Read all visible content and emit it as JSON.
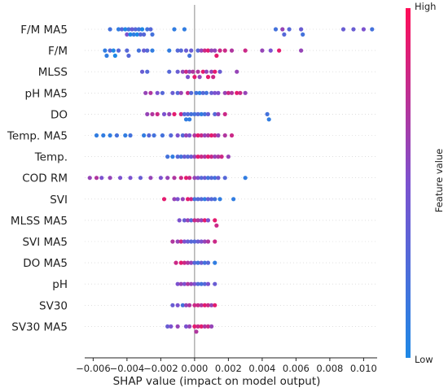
{
  "chart_data": {
    "type": "scatter",
    "subtype": "shap-beeswarm",
    "title": "",
    "xlabel": "SHAP value (impact on model output)",
    "ylabel": "",
    "xlim": [
      -0.0065,
      0.0108
    ],
    "xticks": [
      "−0.006",
      "−0.004",
      "−0.002",
      "0.000",
      "0.002",
      "0.004",
      "0.006",
      "0.008",
      "0.010"
    ],
    "xtick_values": [
      -0.006,
      -0.004,
      -0.002,
      0.0,
      0.002,
      0.004,
      0.006,
      0.008,
      0.01
    ],
    "grid": false,
    "colorbar": {
      "label": "Feature value",
      "high_label": "High",
      "low_label": "Low",
      "low_color": "#1e88e5",
      "high_color": "#ff0d57"
    },
    "features": [
      {
        "name": "F/M MA5",
        "points": [
          [
            -0.005,
            0.2
          ],
          [
            -0.0045,
            0.1
          ],
          [
            -0.0043,
            0.3
          ],
          [
            -0.0041,
            0.0
          ],
          [
            -0.004,
            0.5
          ],
          [
            -0.0039,
            0.2
          ],
          [
            -0.0038,
            0.0
          ],
          [
            -0.0037,
            0.4
          ],
          [
            -0.0036,
            0.1
          ],
          [
            -0.0035,
            0.3
          ],
          [
            -0.0034,
            0.0
          ],
          [
            -0.0033,
            0.2
          ],
          [
            -0.0032,
            0.3
          ],
          [
            -0.0031,
            0.0
          ],
          [
            -0.003,
            0.3
          ],
          [
            -0.0028,
            0.2
          ],
          [
            -0.0026,
            0.3
          ],
          [
            -0.0025,
            0.2
          ],
          [
            -0.0012,
            0.1
          ],
          [
            -0.0006,
            0.1
          ],
          [
            0.0048,
            0.2
          ],
          [
            0.0052,
            0.6
          ],
          [
            0.0053,
            0.3
          ],
          [
            0.0056,
            0.3
          ],
          [
            0.0063,
            0.4
          ],
          [
            0.0064,
            0.2
          ],
          [
            0.0088,
            0.4
          ],
          [
            0.0094,
            0.4
          ],
          [
            0.01,
            0.5
          ],
          [
            0.0105,
            0.2
          ]
        ]
      },
      {
        "name": "F/M",
        "points": [
          [
            -0.0053,
            0.1
          ],
          [
            -0.0052,
            0.1
          ],
          [
            -0.005,
            0.3
          ],
          [
            -0.0048,
            0.0
          ],
          [
            -0.0047,
            0.0
          ],
          [
            -0.0045,
            0.3
          ],
          [
            -0.004,
            0.3
          ],
          [
            -0.0039,
            0.3
          ],
          [
            -0.0033,
            0.2
          ],
          [
            -0.003,
            0.4
          ],
          [
            -0.0028,
            0.3
          ],
          [
            -0.0025,
            0.1
          ],
          [
            -0.0015,
            0.1
          ],
          [
            -0.001,
            0.3
          ],
          [
            -0.0008,
            0.3
          ],
          [
            -0.0005,
            0.4
          ],
          [
            -0.0002,
            0.4
          ],
          [
            -0.0003,
            0.2
          ],
          [
            0.0002,
            0.3
          ],
          [
            0.0004,
            0.6
          ],
          [
            0.0006,
            0.8
          ],
          [
            0.0008,
            0.9
          ],
          [
            0.001,
            0.6
          ],
          [
            0.0012,
            0.6
          ],
          [
            0.0013,
            0.9
          ],
          [
            0.0015,
            0.8
          ],
          [
            0.0018,
            0.8
          ],
          [
            0.0022,
            0.7
          ],
          [
            0.003,
            0.8
          ],
          [
            0.004,
            0.6
          ],
          [
            0.0045,
            0.5
          ],
          [
            0.005,
            0.9
          ],
          [
            0.0063,
            0.6
          ]
        ]
      },
      {
        "name": "MLSS",
        "points": [
          [
            -0.0031,
            0.4
          ],
          [
            -0.0028,
            0.3
          ],
          [
            -0.0015,
            0.3
          ],
          [
            -0.001,
            0.4
          ],
          [
            -0.0007,
            0.6
          ],
          [
            -0.0005,
            0.8
          ],
          [
            -0.0004,
            0.5
          ],
          [
            -0.0003,
            0.6
          ],
          [
            -0.0001,
            0.7
          ],
          [
            0.0,
            0.9
          ],
          [
            0.0002,
            0.7
          ],
          [
            0.0003,
            0.6
          ],
          [
            0.0005,
            0.9
          ],
          [
            0.0007,
            0.6
          ],
          [
            0.0008,
            0.9
          ],
          [
            0.001,
            0.6
          ],
          [
            0.0011,
            0.8
          ],
          [
            0.0012,
            0.9
          ],
          [
            0.0015,
            0.4
          ],
          [
            0.0025,
            0.6
          ]
        ]
      },
      {
        "name": "pH MA5",
        "points": [
          [
            -0.0029,
            0.6
          ],
          [
            -0.0026,
            0.7
          ],
          [
            -0.0022,
            0.5
          ],
          [
            -0.0019,
            0.3
          ],
          [
            -0.0013,
            0.4
          ],
          [
            -0.001,
            0.3
          ],
          [
            -0.0008,
            0.6
          ],
          [
            -0.0004,
            0.8
          ],
          [
            -0.0002,
            0.3
          ],
          [
            0.0001,
            0.2
          ],
          [
            0.0003,
            0.1
          ],
          [
            0.0005,
            0.3
          ],
          [
            0.0007,
            0.2
          ],
          [
            0.001,
            0.4
          ],
          [
            0.0012,
            0.5
          ],
          [
            0.0014,
            0.5
          ],
          [
            0.0018,
            0.6
          ],
          [
            0.002,
            0.8
          ],
          [
            0.0022,
            0.7
          ],
          [
            0.0025,
            0.9
          ],
          [
            0.0027,
            0.8
          ],
          [
            0.003,
            0.6
          ]
        ]
      },
      {
        "name": "DO",
        "points": [
          [
            -0.0028,
            0.6
          ],
          [
            -0.0025,
            0.7
          ],
          [
            -0.0022,
            0.8
          ],
          [
            -0.0018,
            0.5
          ],
          [
            -0.0015,
            0.6
          ],
          [
            -0.0012,
            0.9
          ],
          [
            -0.0008,
            0.8
          ],
          [
            -0.0006,
            0.3
          ],
          [
            -0.0005,
            0.1
          ],
          [
            -0.0004,
            0.3
          ],
          [
            -0.0003,
            0.1
          ],
          [
            -0.0002,
            0.2
          ],
          [
            0.0,
            0.2
          ],
          [
            0.0002,
            0.3
          ],
          [
            0.0004,
            0.1
          ],
          [
            0.0006,
            0.2
          ],
          [
            0.0008,
            0.4
          ],
          [
            0.0012,
            0.3
          ],
          [
            0.0014,
            0.6
          ],
          [
            0.0018,
            0.8
          ],
          [
            0.0043,
            0.2
          ],
          [
            0.0044,
            0.1
          ]
        ]
      },
      {
        "name": "Temp. MA5",
        "points": [
          [
            -0.0058,
            0.1
          ],
          [
            -0.0054,
            0.1
          ],
          [
            -0.005,
            0.1
          ],
          [
            -0.0046,
            0.2
          ],
          [
            -0.0041,
            0.1
          ],
          [
            -0.0038,
            0.2
          ],
          [
            -0.003,
            0.1
          ],
          [
            -0.0027,
            0.3
          ],
          [
            -0.0024,
            0.2
          ],
          [
            -0.0019,
            0.2
          ],
          [
            -0.0014,
            0.3
          ],
          [
            -0.001,
            0.5
          ],
          [
            -0.0007,
            0.3
          ],
          [
            -0.0005,
            0.6
          ],
          [
            -0.0003,
            0.5
          ],
          [
            0.0,
            0.7
          ],
          [
            0.0002,
            0.9
          ],
          [
            0.0004,
            0.8
          ],
          [
            0.0006,
            0.6
          ],
          [
            0.0008,
            0.7
          ],
          [
            0.001,
            0.9
          ],
          [
            0.0012,
            0.8
          ],
          [
            0.0014,
            0.6
          ],
          [
            0.0018,
            0.7
          ],
          [
            0.0022,
            0.8
          ]
        ]
      },
      {
        "name": "Temp.",
        "points": [
          [
            -0.0016,
            0.2
          ],
          [
            -0.0013,
            0.1
          ],
          [
            -0.001,
            0.3
          ],
          [
            -0.0008,
            0.2
          ],
          [
            -0.0006,
            0.4
          ],
          [
            -0.0004,
            0.3
          ],
          [
            -0.0002,
            0.4
          ],
          [
            0.0,
            0.6
          ],
          [
            0.0002,
            0.9
          ],
          [
            0.0004,
            0.8
          ],
          [
            0.0006,
            0.7
          ],
          [
            0.0008,
            0.9
          ],
          [
            0.001,
            0.8
          ],
          [
            0.0012,
            0.6
          ],
          [
            0.0014,
            0.7
          ],
          [
            0.0016,
            0.8
          ],
          [
            0.002,
            0.6
          ]
        ]
      },
      {
        "name": "COD RM",
        "points": [
          [
            -0.0062,
            0.6
          ],
          [
            -0.0058,
            0.7
          ],
          [
            -0.0055,
            0.5
          ],
          [
            -0.005,
            0.6
          ],
          [
            -0.0044,
            0.5
          ],
          [
            -0.0038,
            0.5
          ],
          [
            -0.0032,
            0.4
          ],
          [
            -0.0026,
            0.6
          ],
          [
            -0.002,
            0.5
          ],
          [
            -0.0016,
            0.6
          ],
          [
            -0.0012,
            0.7
          ],
          [
            -0.0008,
            0.8
          ],
          [
            -0.0005,
            0.9
          ],
          [
            -0.0003,
            0.8
          ],
          [
            0.0,
            0.6
          ],
          [
            0.0002,
            0.5
          ],
          [
            0.0004,
            0.3
          ],
          [
            0.0006,
            0.4
          ],
          [
            0.0008,
            0.2
          ],
          [
            0.001,
            0.3
          ],
          [
            0.0012,
            0.2
          ],
          [
            0.0014,
            0.4
          ],
          [
            0.0018,
            0.3
          ],
          [
            0.003,
            0.1
          ]
        ]
      },
      {
        "name": "SVI",
        "points": [
          [
            -0.0018,
            0.9
          ],
          [
            -0.0012,
            0.6
          ],
          [
            -0.001,
            0.5
          ],
          [
            -0.0007,
            0.6
          ],
          [
            -0.0004,
            0.9
          ],
          [
            -0.0002,
            0.8
          ],
          [
            0.0,
            0.2
          ],
          [
            0.0002,
            0.3
          ],
          [
            0.0004,
            0.3
          ],
          [
            0.0006,
            0.1
          ],
          [
            0.0008,
            0.4
          ],
          [
            0.001,
            0.3
          ],
          [
            0.0012,
            0.2
          ],
          [
            0.0015,
            0.1
          ],
          [
            0.0023,
            0.1
          ]
        ]
      },
      {
        "name": "MLSS MA5",
        "points": [
          [
            -0.0009,
            0.5
          ],
          [
            -0.0006,
            0.4
          ],
          [
            -0.0004,
            0.6
          ],
          [
            -0.0002,
            0.3
          ],
          [
            0.0,
            0.8
          ],
          [
            0.0002,
            0.7
          ],
          [
            0.0004,
            0.6
          ],
          [
            0.0006,
            0.9
          ],
          [
            0.0008,
            0.5
          ],
          [
            0.0012,
            0.9
          ],
          [
            0.0013,
            0.8
          ]
        ]
      },
      {
        "name": "SVI MA5",
        "points": [
          [
            -0.0013,
            0.7
          ],
          [
            -0.001,
            0.6
          ],
          [
            -0.0008,
            0.8
          ],
          [
            -0.0006,
            0.5
          ],
          [
            -0.0004,
            0.4
          ],
          [
            -0.0002,
            0.3
          ],
          [
            0.0,
            0.3
          ],
          [
            0.0002,
            0.4
          ],
          [
            0.0004,
            0.5
          ],
          [
            0.0006,
            0.6
          ],
          [
            0.0008,
            0.7
          ],
          [
            0.0012,
            0.8
          ]
        ]
      },
      {
        "name": "DO MA5",
        "points": [
          [
            -0.0011,
            0.8
          ],
          [
            -0.0008,
            0.9
          ],
          [
            -0.0006,
            0.8
          ],
          [
            -0.0004,
            0.7
          ],
          [
            -0.0002,
            0.6
          ],
          [
            0.0,
            0.3
          ],
          [
            0.0002,
            0.2
          ],
          [
            0.0004,
            0.4
          ],
          [
            0.0006,
            0.2
          ],
          [
            0.0008,
            0.3
          ],
          [
            0.0012,
            0.1
          ]
        ]
      },
      {
        "name": "pH",
        "points": [
          [
            -0.001,
            0.5
          ],
          [
            -0.0008,
            0.6
          ],
          [
            -0.0006,
            0.5
          ],
          [
            -0.0004,
            0.7
          ],
          [
            -0.0002,
            0.6
          ],
          [
            0.0,
            0.5
          ],
          [
            0.0002,
            0.3
          ],
          [
            0.0004,
            0.2
          ],
          [
            0.0006,
            0.3
          ],
          [
            0.0008,
            0.5
          ],
          [
            0.0012,
            0.4
          ]
        ]
      },
      {
        "name": "SV30",
        "points": [
          [
            -0.0013,
            0.4
          ],
          [
            -0.001,
            0.5
          ],
          [
            -0.0007,
            0.2
          ],
          [
            -0.0005,
            0.6
          ],
          [
            -0.0003,
            0.7
          ],
          [
            0.0,
            0.8
          ],
          [
            0.0002,
            0.8
          ],
          [
            0.0004,
            0.7
          ],
          [
            0.0006,
            0.9
          ],
          [
            0.0008,
            0.8
          ],
          [
            0.001,
            0.6
          ],
          [
            0.0012,
            0.9
          ]
        ]
      },
      {
        "name": "SV30 MA5",
        "points": [
          [
            -0.0016,
            0.4
          ],
          [
            -0.0014,
            0.5
          ],
          [
            -0.001,
            0.6
          ],
          [
            -0.0005,
            0.5
          ],
          [
            -0.0003,
            0.6
          ],
          [
            0.0,
            0.9
          ],
          [
            0.0001,
            0.7
          ],
          [
            0.0002,
            0.8
          ],
          [
            0.0004,
            0.9
          ],
          [
            0.0006,
            0.7
          ],
          [
            0.0008,
            0.8
          ],
          [
            0.001,
            0.6
          ]
        ]
      }
    ]
  }
}
